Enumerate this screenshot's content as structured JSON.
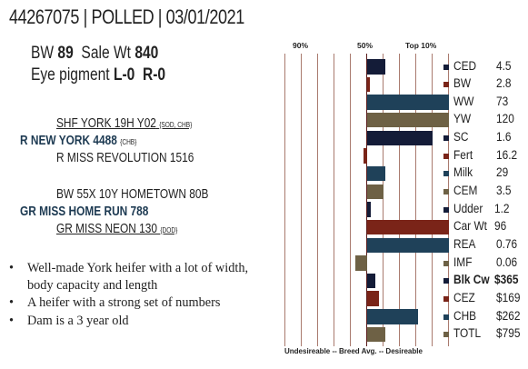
{
  "header": {
    "title": "44267075 | POLLED | 03/01/2021"
  },
  "traits": {
    "bw_label": "BW",
    "bw_value": "89",
    "salewt_label": "Sale Wt",
    "salewt_value": "840",
    "eye_label": "Eye pigment",
    "eye_left": "L-0",
    "eye_right": "R-0"
  },
  "pedigree": {
    "sire_sire": "SHF YORK 19H Y02",
    "sire_sire_tag": "{SOD, CHB}",
    "sire": "R NEW YORK 4488",
    "sire_tag": "{CHB}",
    "sire_dam": "R MISS REVOLUTION 1516",
    "dam_sire": "BW 55X 10Y HOMETOWN 80B",
    "dam": "GR MISS HOME RUN 788",
    "dam_dam": "GR MISS NEON 130",
    "dam_dam_tag": "{DOD}"
  },
  "bullets": [
    "Well-made York heifer with a lot of width, body capacity and length",
    "A heifer with a strong set of numbers",
    "Dam is a 3 year old"
  ],
  "chart_data": {
    "type": "bar",
    "title": "",
    "top_labels": [
      "90%",
      "50%",
      "Top 10%"
    ],
    "bottom_label": "Undesireable -- Breed Avg. -- Desireable",
    "xlim": [
      -1,
      1
    ],
    "center": 0,
    "colors": {
      "navy": "#141c38",
      "rust": "#7a2418",
      "teal": "#1f4159",
      "olive": "#6e6145",
      "grid": "#a97a6e",
      "center": "#5b1d1d"
    },
    "series": [
      {
        "label": "CED",
        "value": "4.5",
        "bar": 0.22,
        "color": "navy",
        "bold": false
      },
      {
        "label": "BW",
        "value": "2.8",
        "bar": 0.02,
        "color": "rust",
        "bold": false
      },
      {
        "label": "WW",
        "value": "73",
        "bar": 1.0,
        "color": "teal",
        "bold": false
      },
      {
        "label": "YW",
        "value": "120",
        "bar": 1.0,
        "color": "olive",
        "bold": false
      },
      {
        "label": "SC",
        "value": "1.6",
        "bar": 0.8,
        "color": "navy",
        "bold": false
      },
      {
        "label": "Fert",
        "value": "16.2",
        "bar": -0.05,
        "color": "rust",
        "bold": false
      },
      {
        "label": "Milk",
        "value": "29",
        "bar": 0.22,
        "color": "teal",
        "bold": false
      },
      {
        "label": "CEM",
        "value": "3.5",
        "bar": 0.2,
        "color": "olive",
        "bold": false
      },
      {
        "label": "Udder",
        "value": "1.2",
        "bar": 0.04,
        "color": "navy",
        "bold": false
      },
      {
        "label": "Car Wt",
        "value": "96",
        "bar": 1.0,
        "color": "rust",
        "bold": false
      },
      {
        "label": "REA",
        "value": "0.76",
        "bar": 1.0,
        "color": "teal",
        "bold": false
      },
      {
        "label": "IMF",
        "value": "0.06",
        "bar": -0.14,
        "color": "olive",
        "bold": false
      },
      {
        "label": "Blk Cw",
        "value": "$365",
        "bar": 0.1,
        "color": "navy",
        "bold": true
      },
      {
        "label": "CEZ",
        "value": "$169",
        "bar": 0.14,
        "color": "rust",
        "bold": false
      },
      {
        "label": "CHB",
        "value": "$262",
        "bar": 0.62,
        "color": "teal",
        "bold": false
      },
      {
        "label": "TOTL",
        "value": "$795",
        "bar": 0.22,
        "color": "olive",
        "bold": false
      }
    ]
  }
}
